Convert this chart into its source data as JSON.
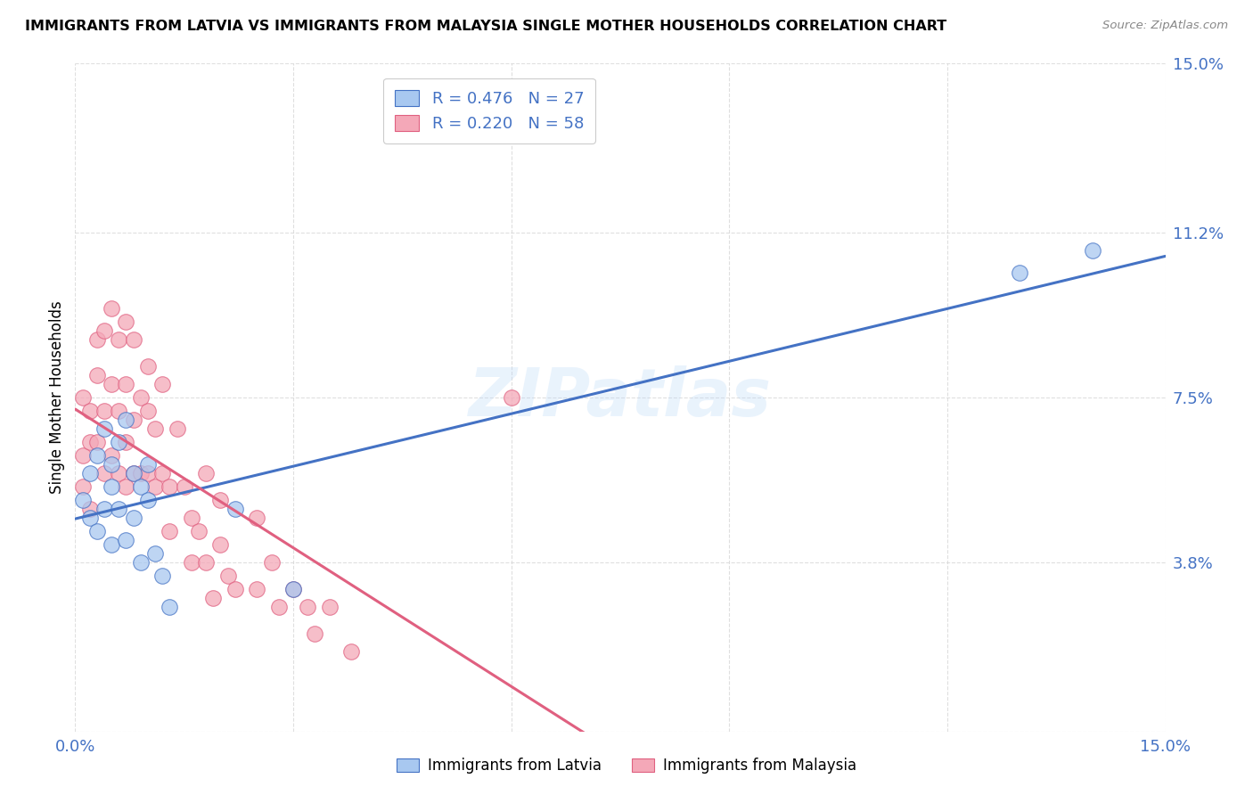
{
  "title": "IMMIGRANTS FROM LATVIA VS IMMIGRANTS FROM MALAYSIA SINGLE MOTHER HOUSEHOLDS CORRELATION CHART",
  "source": "Source: ZipAtlas.com",
  "ylabel": "Single Mother Households",
  "xlim": [
    0.0,
    0.15
  ],
  "ylim": [
    0.0,
    0.15
  ],
  "xtick_vals": [
    0.0,
    0.03,
    0.06,
    0.09,
    0.12,
    0.15
  ],
  "xtick_labels": [
    "0.0%",
    "",
    "",
    "",
    "",
    "15.0%"
  ],
  "ytick_vals": [
    0.0,
    0.038,
    0.075,
    0.112,
    0.15
  ],
  "ytick_labels": [
    "",
    "3.8%",
    "7.5%",
    "11.2%",
    "15.0%"
  ],
  "color_latvia": "#a8c8f0",
  "color_malaysia": "#f4a8b8",
  "color_blue": "#4472c4",
  "color_pink": "#e06080",
  "scatter_latvia_x": [
    0.001,
    0.002,
    0.002,
    0.003,
    0.003,
    0.004,
    0.004,
    0.005,
    0.005,
    0.005,
    0.006,
    0.006,
    0.007,
    0.007,
    0.008,
    0.008,
    0.009,
    0.009,
    0.01,
    0.01,
    0.011,
    0.012,
    0.013,
    0.022,
    0.03,
    0.13,
    0.14
  ],
  "scatter_latvia_y": [
    0.052,
    0.058,
    0.048,
    0.062,
    0.045,
    0.068,
    0.05,
    0.06,
    0.055,
    0.042,
    0.065,
    0.05,
    0.07,
    0.043,
    0.058,
    0.048,
    0.055,
    0.038,
    0.06,
    0.052,
    0.04,
    0.035,
    0.028,
    0.05,
    0.032,
    0.103,
    0.108
  ],
  "scatter_malaysia_x": [
    0.001,
    0.001,
    0.001,
    0.002,
    0.002,
    0.002,
    0.003,
    0.003,
    0.003,
    0.004,
    0.004,
    0.004,
    0.005,
    0.005,
    0.005,
    0.006,
    0.006,
    0.006,
    0.007,
    0.007,
    0.007,
    0.007,
    0.008,
    0.008,
    0.008,
    0.009,
    0.009,
    0.01,
    0.01,
    0.01,
    0.011,
    0.011,
    0.012,
    0.012,
    0.013,
    0.013,
    0.014,
    0.015,
    0.016,
    0.016,
    0.017,
    0.018,
    0.018,
    0.019,
    0.02,
    0.02,
    0.021,
    0.022,
    0.025,
    0.025,
    0.027,
    0.028,
    0.03,
    0.032,
    0.033,
    0.035,
    0.038,
    0.06
  ],
  "scatter_malaysia_y": [
    0.062,
    0.075,
    0.055,
    0.072,
    0.065,
    0.05,
    0.08,
    0.088,
    0.065,
    0.09,
    0.072,
    0.058,
    0.095,
    0.078,
    0.062,
    0.088,
    0.072,
    0.058,
    0.092,
    0.078,
    0.065,
    0.055,
    0.088,
    0.07,
    0.058,
    0.075,
    0.058,
    0.082,
    0.072,
    0.058,
    0.068,
    0.055,
    0.078,
    0.058,
    0.055,
    0.045,
    0.068,
    0.055,
    0.048,
    0.038,
    0.045,
    0.058,
    0.038,
    0.03,
    0.052,
    0.042,
    0.035,
    0.032,
    0.048,
    0.032,
    0.038,
    0.028,
    0.032,
    0.028,
    0.022,
    0.028,
    0.018,
    0.075
  ],
  "watermark": "ZIPatlas",
  "figsize": [
    14.06,
    8.92
  ],
  "dpi": 100
}
